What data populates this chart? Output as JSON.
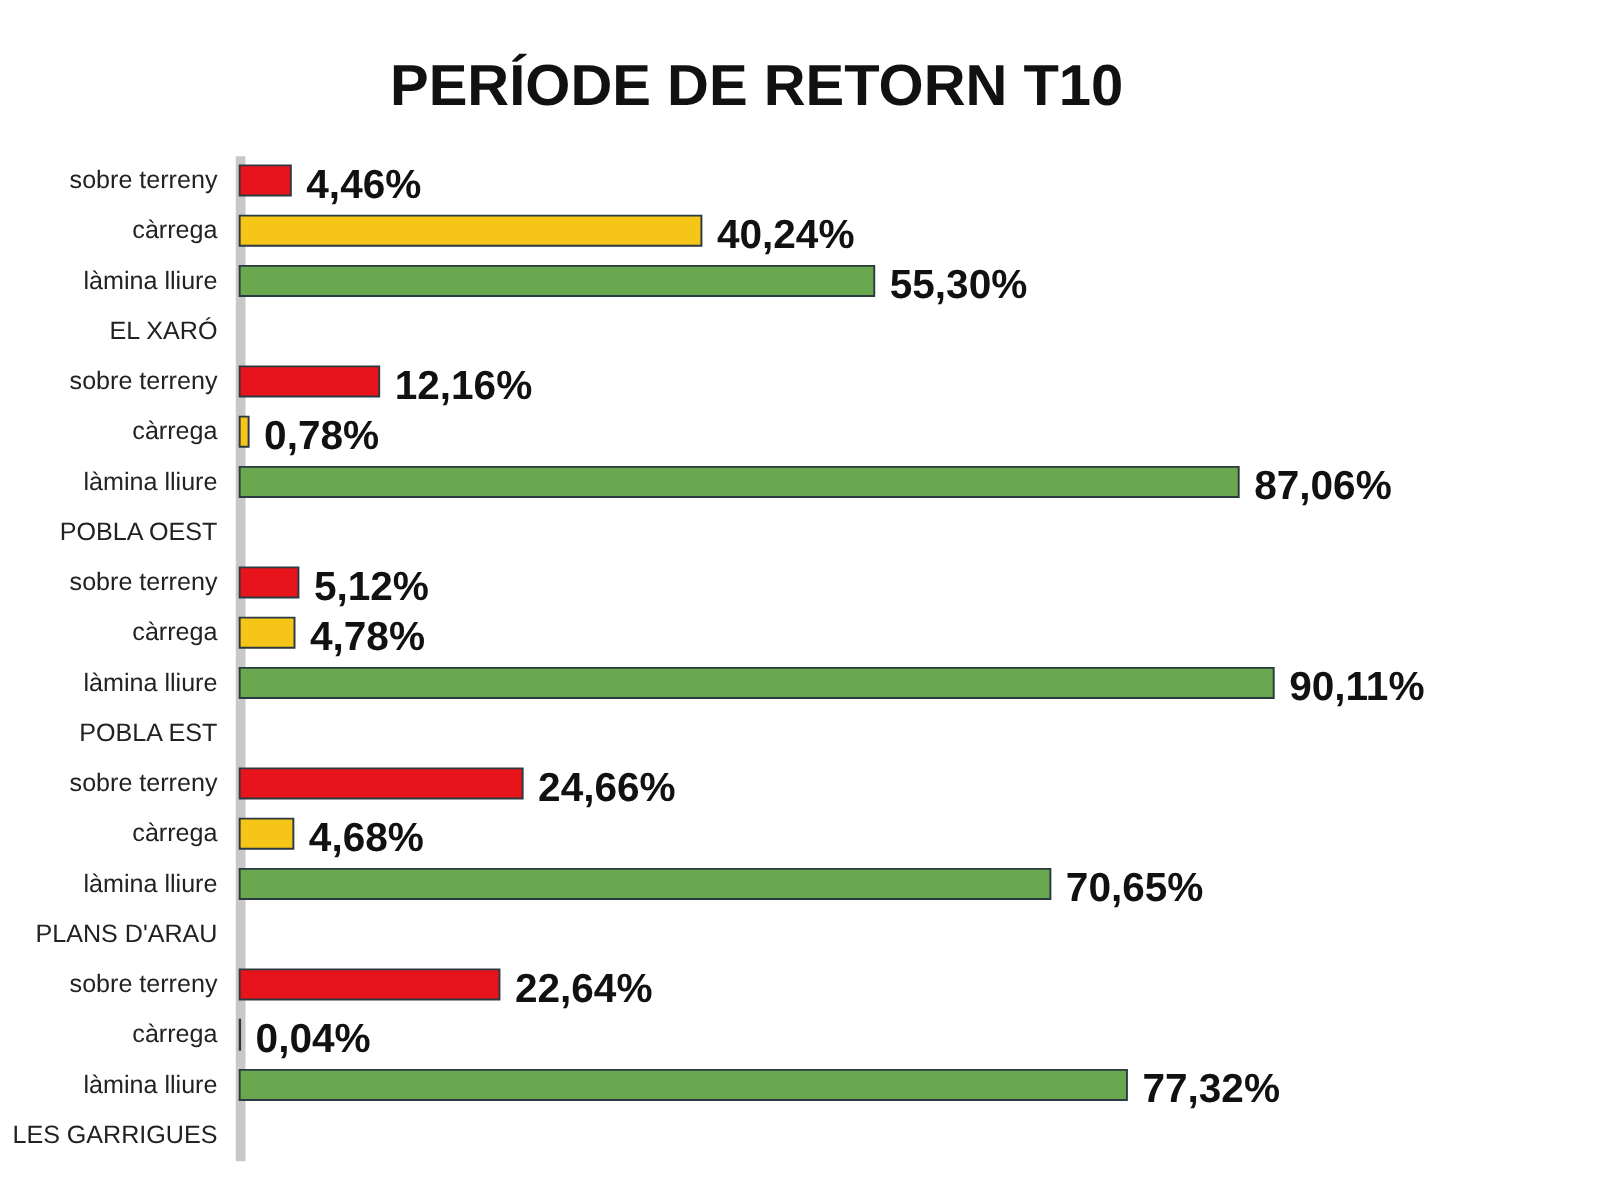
{
  "chart_data": {
    "type": "bar",
    "orientation": "horizontal",
    "title": "PERÍODE DE RETORN T10",
    "categories": [
      "sobre terreny",
      "càrrega",
      "làmina lliure",
      "EL XARÓ",
      "sobre terreny",
      "càrrega",
      "làmina lliure",
      "POBLA OEST",
      "sobre terreny",
      "càrrega",
      "làmina lliure",
      "POBLA EST",
      "sobre terreny",
      "càrrega",
      "làmina lliure",
      "PLANS D'ARAU",
      "sobre terreny",
      "càrrega",
      "làmina lliure",
      "LES GARRIGUES"
    ],
    "values": [
      4.46,
      40.24,
      55.3,
      null,
      12.16,
      0.78,
      87.06,
      null,
      5.12,
      4.78,
      90.11,
      null,
      24.66,
      4.68,
      70.65,
      null,
      22.64,
      0.04,
      77.32,
      null
    ],
    "colors": [
      "#e8141b",
      "#f5c518",
      "#6aa84f",
      null,
      "#e8141b",
      "#f5c518",
      "#6aa84f",
      null,
      "#e8141b",
      "#f5c518",
      "#6aa84f",
      null,
      "#e8141b",
      "#f5c518",
      "#6aa84f",
      null,
      "#e8141b",
      "#f5c518",
      "#6aa84f",
      null
    ],
    "value_labels": [
      "4,46%",
      "40,24%",
      "55,30%",
      null,
      "12,16%",
      "0,78%",
      "87,06%",
      null,
      "5,12%",
      "4,78%",
      "90,11%",
      null,
      "24,66%",
      "4,68%",
      "70,65%",
      null,
      "22,64%",
      "0,04%",
      "77,32%",
      null
    ],
    "grid": false
  }
}
